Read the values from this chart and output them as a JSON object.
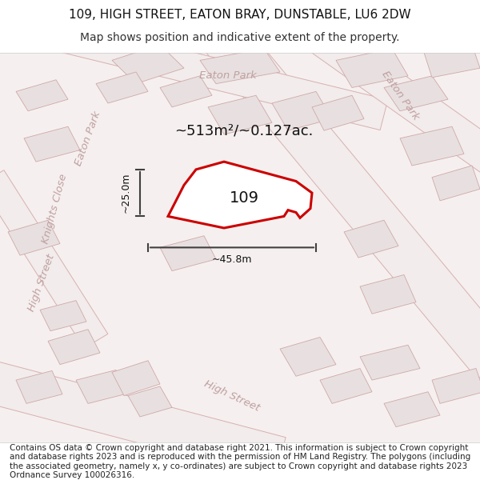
{
  "title_line1": "109, HIGH STREET, EATON BRAY, DUNSTABLE, LU6 2DW",
  "title_line2": "Map shows position and indicative extent of the property.",
  "footer_text": "Contains OS data © Crown copyright and database right 2021. This information is subject to Crown copyright and database rights 2023 and is reproduced with the permission of HM Land Registry. The polygons (including the associated geometry, namely x, y co-ordinates) are subject to Crown copyright and database rights 2023 Ordnance Survey 100026316.",
  "area_label": "~513m²/~0.127ac.",
  "property_number": "109",
  "width_label": "~45.8m",
  "height_label": "~25.0m",
  "bg_color": "#f5f0f0",
  "map_bg": "#f8f4f4",
  "road_fill": "#ffffff",
  "building_fill": "#e0d8d8",
  "building_stroke": "#c8a8a8",
  "road_stroke": "#d09090",
  "highlight_fill": "#ffffff",
  "highlight_stroke": "#cc0000",
  "dim_line_color": "#404040",
  "road_label_color": "#c0a0a0",
  "title_fontsize": 11,
  "subtitle_fontsize": 10,
  "footer_fontsize": 7.5
}
